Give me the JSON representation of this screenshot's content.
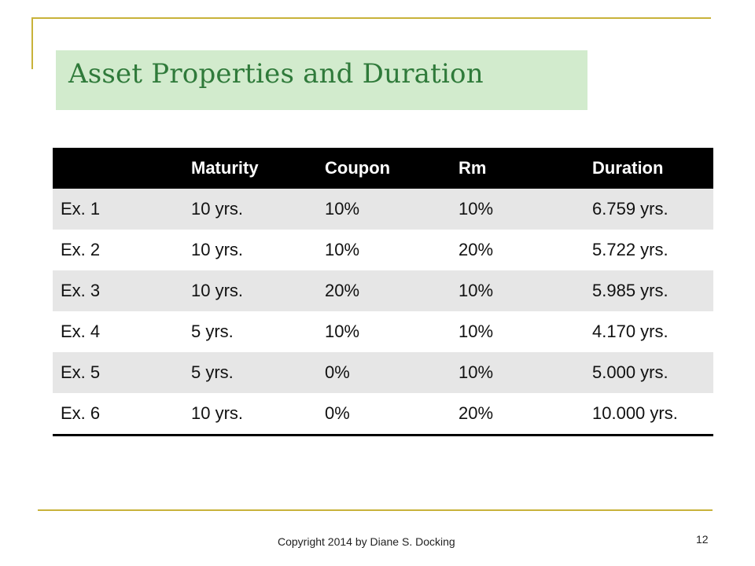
{
  "slide": {
    "title": "Asset Properties and Duration",
    "footer": "Copyright 2014 by Diane S. Docking",
    "page_number": "12"
  },
  "table": {
    "headers": [
      "",
      "Maturity",
      "Coupon",
      "Rm",
      "Duration"
    ],
    "rows": [
      [
        "Ex. 1",
        "10 yrs.",
        "10%",
        "10%",
        "6.759 yrs."
      ],
      [
        "Ex. 2",
        "10 yrs.",
        "10%",
        "20%",
        "5.722 yrs."
      ],
      [
        "Ex. 3",
        "10 yrs.",
        "20%",
        "10%",
        "5.985 yrs."
      ],
      [
        "Ex. 4",
        "5 yrs.",
        "10%",
        "10%",
        "4.170 yrs."
      ],
      [
        "Ex. 5",
        "5 yrs.",
        "0%",
        "10%",
        "5.000 yrs."
      ],
      [
        "Ex. 6",
        "10 yrs.",
        "0%",
        "20%",
        "10.000 yrs."
      ]
    ]
  },
  "colors": {
    "accent_rule": "#c8b23a",
    "title_box": "#d2ebcd",
    "title_text": "#2f7a3a",
    "header_bg": "#000000",
    "row_shade": "#e6e6e6"
  }
}
